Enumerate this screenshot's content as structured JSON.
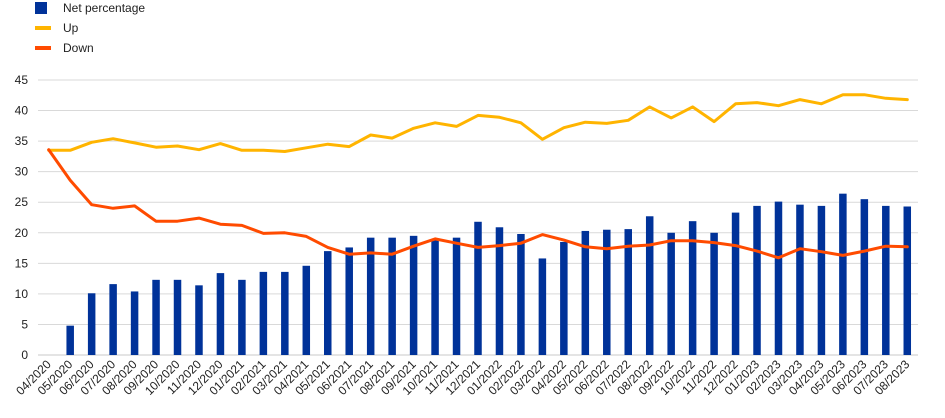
{
  "chart_data": {
    "type": "bar",
    "categories": [
      "04/2020",
      "05/2020",
      "06/2020",
      "07/2020",
      "08/2020",
      "09/2020",
      "10/2020",
      "11/2020",
      "12/2020",
      "01/2021",
      "02/2021",
      "03/2021",
      "04/2021",
      "05/2021",
      "06/2021",
      "07/2021",
      "08/2021",
      "09/2021",
      "10/2021",
      "11/2021",
      "12/2021",
      "01/2022",
      "02/2022",
      "03/2022",
      "04/2022",
      "05/2022",
      "06/2022",
      "07/2022",
      "08/2022",
      "09/2022",
      "10/2022",
      "11/2022",
      "12/2022",
      "01/2023",
      "02/2023",
      "03/2023",
      "04/2023",
      "05/2023",
      "06/2023",
      "07/2023",
      "08/2023"
    ],
    "series": [
      {
        "name": "Net percentage",
        "kind": "bar",
        "color": "#003299",
        "values": [
          null,
          4.8,
          10.1,
          11.6,
          10.4,
          12.3,
          12.3,
          11.4,
          13.4,
          12.3,
          13.6,
          13.6,
          14.6,
          17.0,
          17.6,
          19.2,
          19.2,
          19.5,
          18.9,
          19.2,
          21.8,
          20.9,
          19.8,
          15.8,
          18.5,
          20.3,
          20.5,
          20.6,
          22.7,
          20.0,
          21.9,
          20.0,
          23.3,
          24.4,
          25.1,
          24.6,
          24.4,
          26.4,
          25.5,
          24.4,
          24.3
        ]
      },
      {
        "name": "Up",
        "kind": "line",
        "color": "#FFB400",
        "values": [
          33.5,
          33.5,
          34.8,
          35.4,
          34.7,
          34.0,
          34.2,
          33.6,
          34.6,
          33.5,
          33.5,
          33.3,
          33.9,
          34.5,
          34.1,
          36.0,
          35.5,
          37.1,
          38.0,
          37.4,
          39.2,
          38.9,
          38.0,
          35.3,
          37.2,
          38.1,
          37.9,
          38.4,
          40.6,
          38.8,
          40.6,
          38.2,
          41.1,
          41.3,
          40.8,
          41.8,
          41.1,
          42.6,
          42.6,
          42.0,
          41.8
        ]
      },
      {
        "name": "Down",
        "kind": "line",
        "color": "#FF4B00",
        "values": [
          33.6,
          28.6,
          24.6,
          24.0,
          24.4,
          21.9,
          21.9,
          22.4,
          21.4,
          21.2,
          19.9,
          20.0,
          19.4,
          17.6,
          16.5,
          16.7,
          16.5,
          17.8,
          19.0,
          18.3,
          17.6,
          17.9,
          18.3,
          19.7,
          18.8,
          17.7,
          17.4,
          17.8,
          18.0,
          18.7,
          18.7,
          18.4,
          17.9,
          17.0,
          15.9,
          17.4,
          16.9,
          16.3,
          17.0,
          17.8,
          17.7
        ]
      }
    ],
    "yticks": [
      "0",
      "5",
      "10",
      "15",
      "20",
      "25",
      "30",
      "35",
      "40",
      "45"
    ],
    "ylim": [
      0,
      45
    ],
    "grid": "horizontal",
    "legend": "top-left"
  }
}
